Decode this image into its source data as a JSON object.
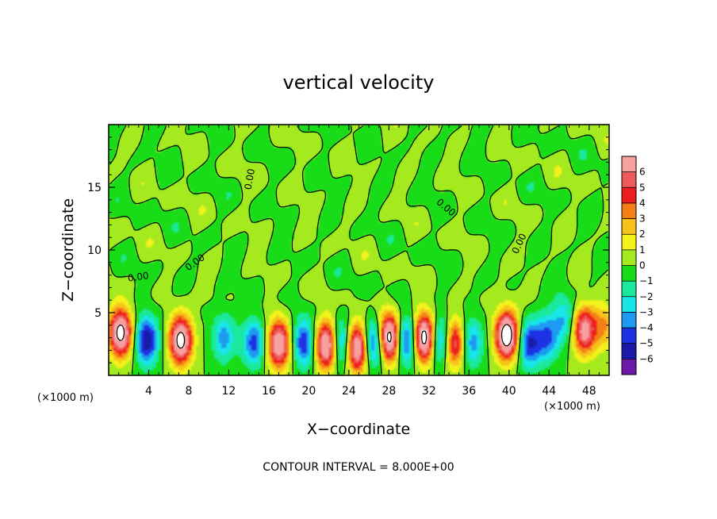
{
  "chart_data": {
    "type": "heatmap",
    "title": "vertical velocity",
    "xlabel": "X−coordinate",
    "ylabel": "Z−coordinate",
    "x_unit_left": "(×1000 m)",
    "x_unit_right": "(×1000 m)",
    "xlim": [
      0,
      50
    ],
    "ylim": [
      0,
      20
    ],
    "x_ticks": [
      4,
      8,
      12,
      16,
      20,
      24,
      28,
      32,
      36,
      40,
      44,
      48
    ],
    "x_tick_labels": [
      "4",
      "8",
      "12",
      "16",
      "20",
      "24",
      "28",
      "32",
      "36",
      "40",
      "44",
      "48"
    ],
    "y_ticks": [
      5,
      10,
      15
    ],
    "y_tick_labels": [
      "5",
      "10",
      "15"
    ],
    "colorbar": {
      "labels": [
        "6",
        "5",
        "4",
        "3",
        "2",
        "1",
        "0",
        "−1",
        "−2",
        "−3",
        "−4",
        "−5",
        "−6"
      ],
      "colors": [
        "#f6a0a0",
        "#ef5a5a",
        "#ee1e1e",
        "#f57f17",
        "#f7c31b",
        "#f3f21c",
        "#a4ea1e",
        "#19dc19",
        "#1ae89a",
        "#19e6e6",
        "#1e9af0",
        "#1c32e4",
        "#1a1aa8",
        "#6e18a8"
      ]
    },
    "contour_labels": [
      "0.00",
      "0.00",
      "0.00",
      "0.00",
      "0.00"
    ],
    "footer": "CONTOUR INTERVAL = 8.000E+00",
    "features": [
      {
        "x": 1.2,
        "z": 3.4,
        "w": 9
      },
      {
        "x": 3.8,
        "z": 2.8,
        "w": -6
      },
      {
        "x": 7.2,
        "z": 2.8,
        "w": 9
      },
      {
        "x": 11.5,
        "z": 3.0,
        "w": -3.5
      },
      {
        "x": 14.5,
        "z": 2.6,
        "w": -4.5
      },
      {
        "x": 17.0,
        "z": 2.5,
        "w": 8
      },
      {
        "x": 19.5,
        "z": 2.6,
        "w": -5
      },
      {
        "x": 21.8,
        "z": 2.4,
        "w": 9
      },
      {
        "x": 23.2,
        "z": 2.5,
        "w": -5.5
      },
      {
        "x": 24.8,
        "z": 2.2,
        "w": 9
      },
      {
        "x": 26.5,
        "z": 2.6,
        "w": -6
      },
      {
        "x": 28.0,
        "z": 3.0,
        "w": 10
      },
      {
        "x": 29.8,
        "z": 2.8,
        "w": -6
      },
      {
        "x": 31.5,
        "z": 3.0,
        "w": 10
      },
      {
        "x": 33.2,
        "z": 2.8,
        "w": -5.5
      },
      {
        "x": 34.5,
        "z": 2.6,
        "w": 7
      },
      {
        "x": 36.2,
        "z": 2.6,
        "w": -4
      },
      {
        "x": 39.8,
        "z": 3.2,
        "w": 10
      },
      {
        "x": 42.0,
        "z": 2.5,
        "w": -5
      },
      {
        "x": 43.8,
        "z": 3.0,
        "w": -4
      },
      {
        "x": 45.5,
        "z": 4.5,
        "w": -3
      },
      {
        "x": 47.5,
        "z": 3.6,
        "w": 7
      },
      {
        "x": 49.5,
        "z": 4.0,
        "w": 3
      }
    ]
  }
}
